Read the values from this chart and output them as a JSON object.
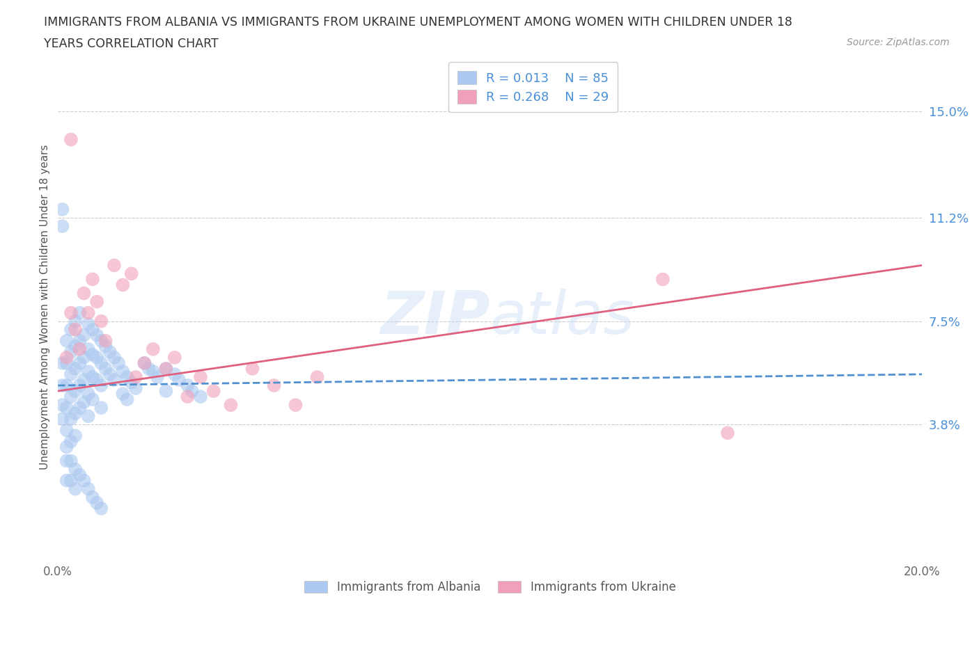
{
  "title_line1": "IMMIGRANTS FROM ALBANIA VS IMMIGRANTS FROM UKRAINE UNEMPLOYMENT AMONG WOMEN WITH CHILDREN UNDER 18",
  "title_line2": "YEARS CORRELATION CHART",
  "source_text": "Source: ZipAtlas.com",
  "ylabel": "Unemployment Among Women with Children Under 18 years",
  "xlim": [
    0.0,
    0.2
  ],
  "ylim": [
    -0.01,
    0.17
  ],
  "xticklabels": [
    "0.0%",
    "",
    "",
    "",
    "",
    "20.0%"
  ],
  "ytick_positions": [
    0.038,
    0.075,
    0.112,
    0.15
  ],
  "ytick_labels": [
    "3.8%",
    "7.5%",
    "11.2%",
    "15.0%"
  ],
  "grid_color": "#cccccc",
  "background_color": "#ffffff",
  "albania_color": "#aac8f0",
  "ukraine_color": "#f0a0b8",
  "albania_R": "0.013",
  "albania_N": "85",
  "ukraine_R": "0.268",
  "ukraine_N": "29",
  "legend_color_blue": "#4a90d9",
  "trendline_albania_color": "#5090d0",
  "trendline_ukraine_color": "#e06080",
  "watermark_text": "ZIPatlas",
  "bottom_legend_albania": "Immigrants from Albania",
  "bottom_legend_ukraine": "Immigrants from Ukraine",
  "albania_x": [
    0.001,
    0.001,
    0.001,
    0.001,
    0.002,
    0.002,
    0.002,
    0.002,
    0.002,
    0.003,
    0.003,
    0.003,
    0.003,
    0.003,
    0.003,
    0.004,
    0.004,
    0.004,
    0.004,
    0.004,
    0.004,
    0.005,
    0.005,
    0.005,
    0.005,
    0.005,
    0.006,
    0.006,
    0.006,
    0.006,
    0.007,
    0.007,
    0.007,
    0.007,
    0.007,
    0.008,
    0.008,
    0.008,
    0.008,
    0.009,
    0.009,
    0.009,
    0.01,
    0.01,
    0.01,
    0.01,
    0.011,
    0.011,
    0.012,
    0.012,
    0.013,
    0.013,
    0.014,
    0.015,
    0.015,
    0.016,
    0.016,
    0.017,
    0.018,
    0.02,
    0.021,
    0.022,
    0.023,
    0.025,
    0.025,
    0.027,
    0.028,
    0.03,
    0.031,
    0.033,
    0.001,
    0.001,
    0.002,
    0.002,
    0.002,
    0.003,
    0.003,
    0.004,
    0.004,
    0.005,
    0.006,
    0.007,
    0.008,
    0.009,
    0.01
  ],
  "albania_y": [
    0.06,
    0.052,
    0.045,
    0.04,
    0.068,
    0.06,
    0.052,
    0.044,
    0.036,
    0.072,
    0.064,
    0.056,
    0.048,
    0.04,
    0.032,
    0.075,
    0.066,
    0.058,
    0.05,
    0.042,
    0.034,
    0.078,
    0.068,
    0.06,
    0.052,
    0.044,
    0.07,
    0.062,
    0.054,
    0.046,
    0.074,
    0.065,
    0.057,
    0.049,
    0.041,
    0.072,
    0.063,
    0.055,
    0.047,
    0.07,
    0.062,
    0.054,
    0.068,
    0.06,
    0.052,
    0.044,
    0.066,
    0.058,
    0.064,
    0.056,
    0.062,
    0.054,
    0.06,
    0.057,
    0.049,
    0.055,
    0.047,
    0.053,
    0.051,
    0.06,
    0.058,
    0.057,
    0.055,
    0.058,
    0.05,
    0.056,
    0.054,
    0.052,
    0.05,
    0.048,
    0.115,
    0.109,
    0.03,
    0.025,
    0.018,
    0.025,
    0.018,
    0.022,
    0.015,
    0.02,
    0.018,
    0.015,
    0.012,
    0.01,
    0.008
  ],
  "ukraine_x": [
    0.002,
    0.003,
    0.004,
    0.005,
    0.006,
    0.007,
    0.008,
    0.009,
    0.01,
    0.011,
    0.013,
    0.015,
    0.017,
    0.018,
    0.02,
    0.022,
    0.025,
    0.027,
    0.03,
    0.033,
    0.036,
    0.04,
    0.045,
    0.05,
    0.055,
    0.06,
    0.14,
    0.155,
    0.003
  ],
  "ukraine_y": [
    0.062,
    0.078,
    0.072,
    0.065,
    0.085,
    0.078,
    0.09,
    0.082,
    0.075,
    0.068,
    0.095,
    0.088,
    0.092,
    0.055,
    0.06,
    0.065,
    0.058,
    0.062,
    0.048,
    0.055,
    0.05,
    0.045,
    0.058,
    0.052,
    0.045,
    0.055,
    0.09,
    0.035,
    0.14
  ],
  "trendline_albania_x0": 0.0,
  "trendline_albania_x1": 0.2,
  "trendline_albania_y0": 0.052,
  "trendline_albania_y1": 0.056,
  "trendline_ukraine_x0": 0.0,
  "trendline_ukraine_x1": 0.2,
  "trendline_ukraine_y0": 0.05,
  "trendline_ukraine_y1": 0.095
}
